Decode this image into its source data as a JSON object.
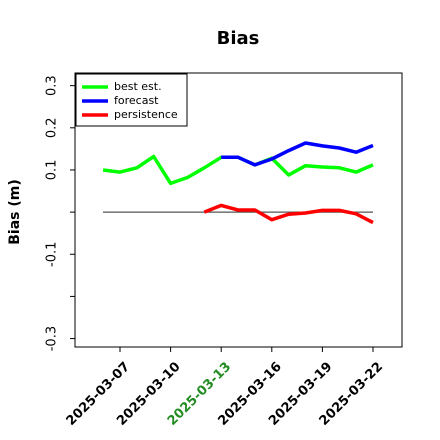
{
  "chart_data": {
    "type": "line",
    "title": "Bias",
    "xlabel": "",
    "ylabel": "Bias (m)",
    "ylim": [
      -0.32,
      0.33
    ],
    "yticks": [
      -0.3,
      -0.1,
      0.1,
      0.2,
      0.3
    ],
    "ytick_labels": [
      "-0.3",
      "-0.1",
      "0.1",
      "0.2",
      "0.3"
    ],
    "xtick_labels": [
      "2025-03-07",
      "2025-03-10",
      "2025-03-13",
      "2025-03-16",
      "2025-03-19",
      "2025-03-22"
    ],
    "xtick_colors": [
      "#000000",
      "#000000",
      "#228b22",
      "#000000",
      "#000000",
      "#000000"
    ],
    "zero_line": 0,
    "grid": false,
    "legend_position": "top-left",
    "series": [
      {
        "name": "best est.",
        "color": "#00ff00",
        "points": [
          [
            "2025-03-06",
            0.1
          ],
          [
            "2025-03-07",
            0.095
          ],
          [
            "2025-03-08",
            0.105
          ],
          [
            "2025-03-09",
            0.132
          ],
          [
            "2025-03-10",
            0.068
          ],
          [
            "2025-03-11",
            0.082
          ],
          [
            "2025-03-12",
            0.105
          ],
          [
            "2025-03-13",
            0.13
          ],
          [
            "2025-03-14",
            0.13
          ],
          [
            "2025-03-15",
            0.112
          ],
          [
            "2025-03-16",
            0.128
          ],
          [
            "2025-03-17",
            0.088
          ],
          [
            "2025-03-18",
            0.11
          ],
          [
            "2025-03-19",
            0.107
          ],
          [
            "2025-03-20",
            0.105
          ],
          [
            "2025-03-21",
            0.095
          ],
          [
            "2025-03-22",
            0.112
          ]
        ]
      },
      {
        "name": "forecast",
        "color": "#0000ff",
        "points": [
          [
            "2025-03-13",
            0.13
          ],
          [
            "2025-03-14",
            0.13
          ],
          [
            "2025-03-15",
            0.112
          ],
          [
            "2025-03-16",
            0.126
          ],
          [
            "2025-03-17",
            0.146
          ],
          [
            "2025-03-18",
            0.164
          ],
          [
            "2025-03-19",
            0.157
          ],
          [
            "2025-03-20",
            0.152
          ],
          [
            "2025-03-21",
            0.142
          ],
          [
            "2025-03-22",
            0.158
          ]
        ]
      },
      {
        "name": "persistence",
        "color": "#ff0000",
        "points": [
          [
            "2025-03-12",
            0.0
          ],
          [
            "2025-03-13",
            0.016
          ],
          [
            "2025-03-14",
            0.005
          ],
          [
            "2025-03-15",
            0.005
          ],
          [
            "2025-03-16",
            -0.018
          ],
          [
            "2025-03-17",
            -0.005
          ],
          [
            "2025-03-18",
            -0.002
          ],
          [
            "2025-03-19",
            0.004
          ],
          [
            "2025-03-20",
            0.004
          ],
          [
            "2025-03-21",
            -0.004
          ],
          [
            "2025-03-22",
            -0.025
          ]
        ]
      }
    ]
  }
}
